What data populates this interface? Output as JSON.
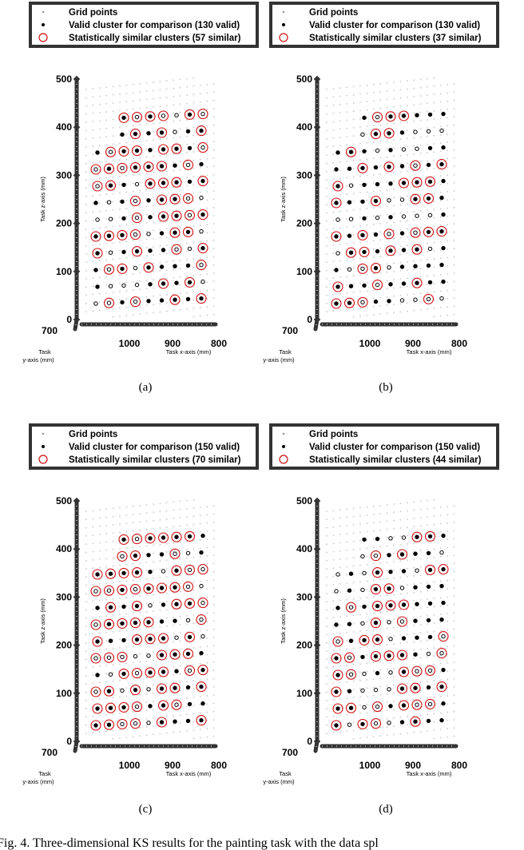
{
  "figure": {
    "caption": "Fig. 4.   Three-dimensional KS results for the painting task with the data spl"
  },
  "chart_data": [
    {
      "type": "scatter",
      "subcaption": "(a)",
      "legend": [
        {
          "label": "Grid points",
          "marker": "small-gray-dot"
        },
        {
          "label": "Valid cluster for comparison (130 valid)",
          "marker": "black-dot"
        },
        {
          "label": "Statistically similar clusters (57 similar)",
          "marker": "red-circle"
        }
      ],
      "xlabel": "Task x-axis (mm)",
      "ylabel": "Task\ny-axis (mm)",
      "zlabel": "Task z-axis (mm)",
      "x_ticks": [
        "1000",
        "900",
        "800"
      ],
      "y_ticks": [
        "700"
      ],
      "z_ticks": [
        "0",
        "100",
        "200",
        "300",
        "400",
        "500"
      ],
      "zlim": [
        0,
        500
      ],
      "valid_count": 130,
      "similar_count": 57,
      "colors": {
        "grid": "#c8c8c8",
        "valid": "#000000",
        "similar": "#d01010",
        "frame": "#333333"
      }
    },
    {
      "type": "scatter",
      "subcaption": "(b)",
      "legend": [
        {
          "label": "Grid points",
          "marker": "small-gray-dot"
        },
        {
          "label": "Valid cluster for comparison (130 valid)",
          "marker": "black-dot"
        },
        {
          "label": "Statistically similar clusters (37 similar)",
          "marker": "red-circle"
        }
      ],
      "xlabel": "Task x-axis (mm)",
      "ylabel": "Task\ny-axis (mm)",
      "zlabel": "Task z-axis (mm)",
      "x_ticks": [
        "1000",
        "900",
        "800"
      ],
      "y_ticks": [
        "700"
      ],
      "z_ticks": [
        "0",
        "100",
        "200",
        "300",
        "400",
        "500"
      ],
      "zlim": [
        0,
        500
      ],
      "valid_count": 130,
      "similar_count": 37,
      "colors": {
        "grid": "#c8c8c8",
        "valid": "#000000",
        "similar": "#d01010",
        "frame": "#333333"
      }
    },
    {
      "type": "scatter",
      "subcaption": "(c)",
      "legend": [
        {
          "label": "Grid points",
          "marker": "small-gray-dot"
        },
        {
          "label": "Valid cluster for comparison (150 valid)",
          "marker": "black-dot"
        },
        {
          "label": "Statistically similar clusters (70 similar)",
          "marker": "red-circle"
        }
      ],
      "xlabel": "Task x-axis (mm)",
      "ylabel": "Task\ny-axis (mm)",
      "zlabel": "Task z-axis (mm)",
      "x_ticks": [
        "1000",
        "900",
        "800"
      ],
      "y_ticks": [
        "700"
      ],
      "z_ticks": [
        "0",
        "100",
        "200",
        "300",
        "400",
        "500"
      ],
      "zlim": [
        0,
        500
      ],
      "valid_count": 150,
      "similar_count": 70,
      "colors": {
        "grid": "#c8c8c8",
        "valid": "#000000",
        "similar": "#d01010",
        "frame": "#333333"
      }
    },
    {
      "type": "scatter",
      "subcaption": "(d)",
      "legend": [
        {
          "label": "Grid points",
          "marker": "small-gray-dot"
        },
        {
          "label": "Valid cluster for comparison (150 valid)",
          "marker": "black-dot"
        },
        {
          "label": "Statistically similar clusters (44 similar)",
          "marker": "red-circle"
        }
      ],
      "xlabel": "Task x-axis (mm)",
      "ylabel": "Task\ny-axis (mm)",
      "zlabel": "Task z-axis (mm)",
      "x_ticks": [
        "1000",
        "900",
        "800"
      ],
      "y_ticks": [
        "700"
      ],
      "z_ticks": [
        "0",
        "100",
        "200",
        "300",
        "400",
        "500"
      ],
      "zlim": [
        0,
        500
      ],
      "valid_count": 150,
      "similar_count": 44,
      "colors": {
        "grid": "#c8c8c8",
        "valid": "#000000",
        "similar": "#d01010",
        "frame": "#333333"
      }
    }
  ]
}
